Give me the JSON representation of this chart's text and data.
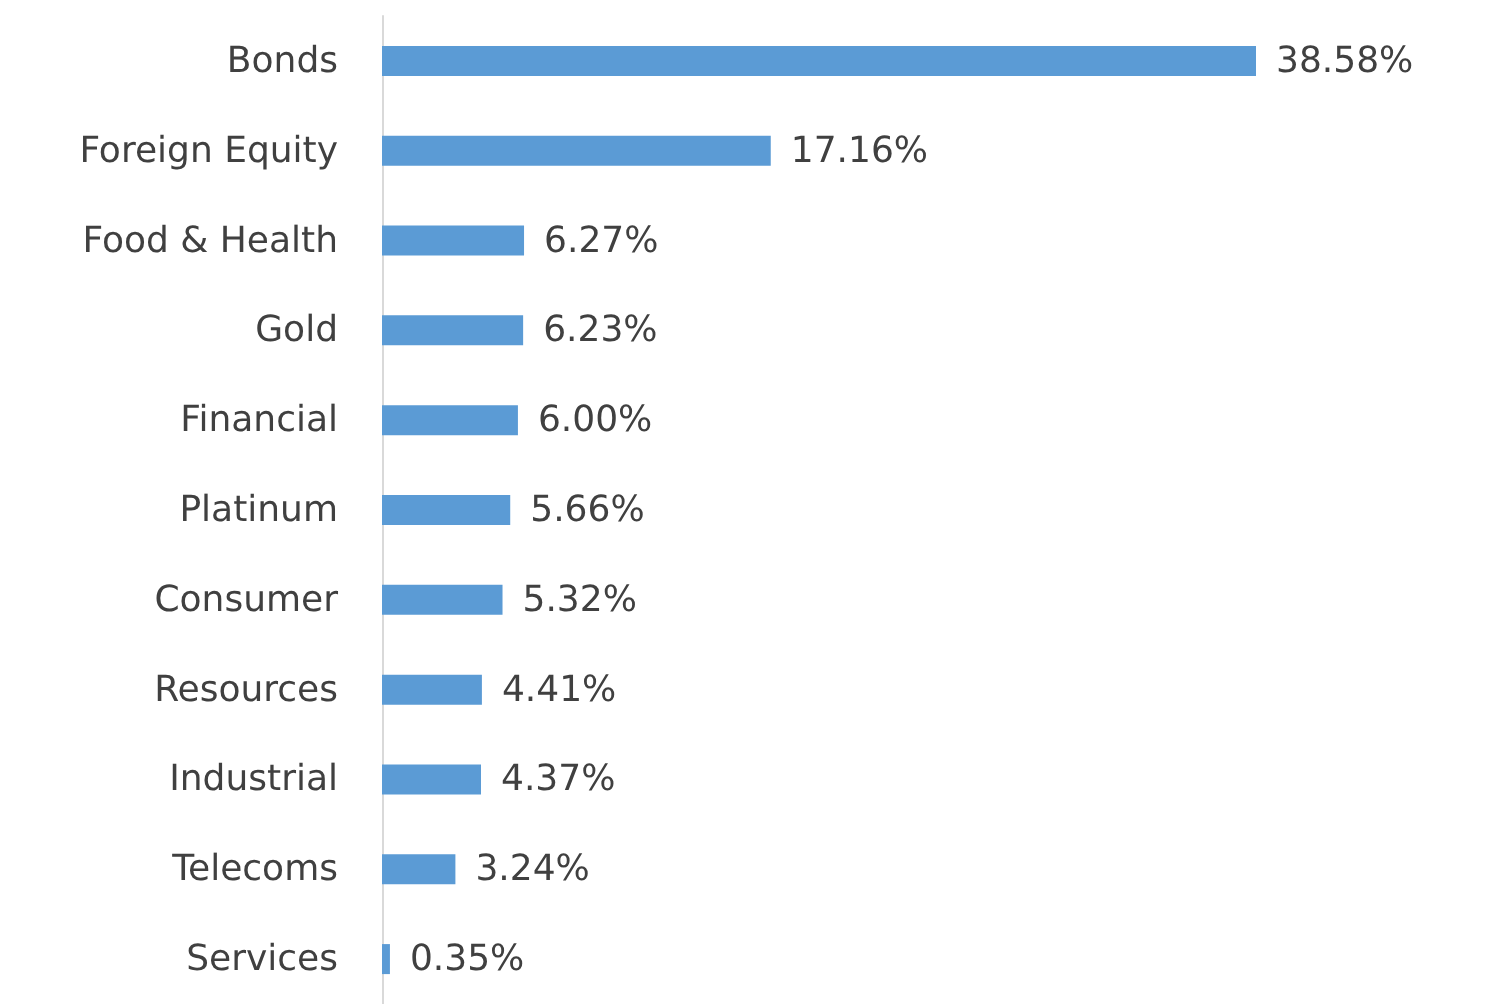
{
  "chart_data": {
    "type": "bar",
    "orientation": "horizontal",
    "categories": [
      "Bonds",
      "Foreign Equity",
      "Food & Health",
      "Gold",
      "Financial",
      "Platinum",
      "Consumer",
      "Resources",
      "Industrial",
      "Telecoms",
      "Services"
    ],
    "values": [
      38.58,
      17.16,
      6.27,
      6.23,
      6.0,
      5.66,
      5.32,
      4.41,
      4.37,
      3.24,
      0.35
    ],
    "value_labels": [
      "38.58%",
      "17.16%",
      "6.27%",
      "6.23%",
      "6.00%",
      "5.66%",
      "5.32%",
      "4.41%",
      "4.37%",
      "3.24%",
      "0.35%"
    ],
    "color": "#5b9bd5",
    "tick_labels": "y"
  }
}
